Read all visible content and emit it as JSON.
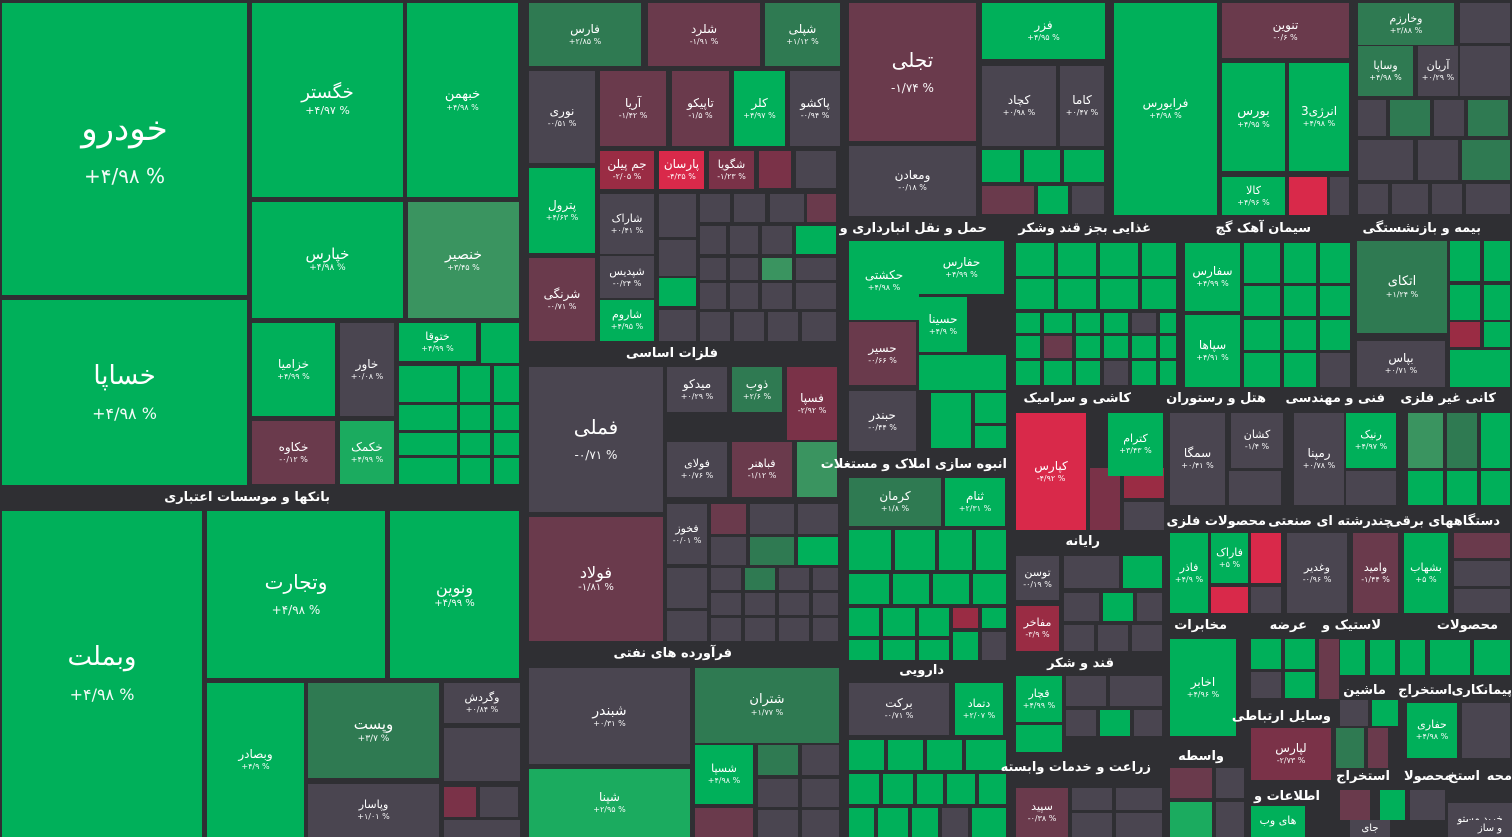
{
  "colors": {
    "bg": "#2f2f33",
    "up5": "#00b05a",
    "up4": "#1bab5f",
    "up3": "#3a9460",
    "up2": "#2f7a52",
    "neutral": "#4a4550",
    "down1": "#6a3a4c",
    "down2": "#7a3248",
    "down3": "#9a2c44",
    "down5": "#d9294a"
  },
  "sectors": [
    {
      "label": "بانکها و موسسات اعتباری"
    },
    {
      "label": "فلزات اساسی"
    },
    {
      "label": "فرآورده های نفتی"
    },
    {
      "label": "حمل و نقل انبارداری و"
    },
    {
      "label": "غذایی بجز قند وشکر"
    },
    {
      "label": "سیمان آهک گچ"
    },
    {
      "label": "بیمه و بازنشستگی"
    },
    {
      "label": "انبوه سازی املاک و مستغلات"
    },
    {
      "label": "کاشی و سرامیک"
    },
    {
      "label": "هتل و رستوران"
    },
    {
      "label": "فنی و مهندسی"
    },
    {
      "label": "کانی غیر فلزی"
    },
    {
      "label": "رایانه"
    },
    {
      "label": "محصولات فلزی"
    },
    {
      "label": "چندرشته ای صنعتی"
    },
    {
      "label": "دستگاههای برقی"
    },
    {
      "label": "دارویی"
    },
    {
      "label": "قند و شکر"
    },
    {
      "label": "مخابرات"
    },
    {
      "label": "عرضه"
    },
    {
      "label": "لاستیک و"
    },
    {
      "label": "محصولات"
    },
    {
      "label": "ماشین"
    },
    {
      "label": "استخراج"
    },
    {
      "label": "پیمانکاری"
    },
    {
      "label": "وسایل ارتباطی"
    },
    {
      "label": "زراعت و خدمات وابسته"
    },
    {
      "label": "واسطه"
    },
    {
      "label": "اطلاعات و"
    },
    {
      "label": "استخراج"
    },
    {
      "label": "محصولا"
    },
    {
      "label": "استخ"
    },
    {
      "label": "محه"
    }
  ],
  "tiles": [
    {
      "name": "خودرو",
      "pct": "+۴/۹۸ %"
    },
    {
      "name": "خساپا",
      "pct": "+۴/۹۸ %"
    },
    {
      "name": "خگستر",
      "pct": "+۴/۹۷ %"
    },
    {
      "name": "خبهمن",
      "pct": "+۴/۹۸ %"
    },
    {
      "name": "خپارس",
      "pct": "+۴/۹۸ %"
    },
    {
      "name": "خنصیر",
      "pct": "+۳/۴۵ %"
    },
    {
      "name": "خزامیا",
      "pct": "+۴/۹۹ %"
    },
    {
      "name": "خاور",
      "pct": "+۰/۰۸ %"
    },
    {
      "name": "ختوقا",
      "pct": "+۴/۹۹ %"
    },
    {
      "name": "خکاوه",
      "pct": "-۰/۱۲ %"
    },
    {
      "name": "خکمک",
      "pct": "+۴/۹۹ %"
    },
    {
      "name": "وبملت",
      "pct": "+۴/۹۸ %"
    },
    {
      "name": "وتجارت",
      "pct": "+۴/۹۸ %"
    },
    {
      "name": "ونوین",
      "pct": "+۴/۹۹ %"
    },
    {
      "name": "وبصادر",
      "pct": "+۴/۹ %"
    },
    {
      "name": "وپست",
      "pct": "+۳/۷ %"
    },
    {
      "name": "وگردش",
      "pct": "+۰/۸۴ %"
    },
    {
      "name": "وپاسار",
      "pct": "+۱/۰۱ %"
    },
    {
      "name": "فارس",
      "pct": "+۲/۸۵ %"
    },
    {
      "name": "شلرد",
      "pct": "-۱/۹۱ %"
    },
    {
      "name": "شپلی",
      "pct": "+۱/۱۲ %"
    },
    {
      "name": "نوری",
      "pct": "-۰/۵۱ %"
    },
    {
      "name": "آریا",
      "pct": "-۱/۴۲ %"
    },
    {
      "name": "تاپیکو",
      "pct": "-۱/۵ %"
    },
    {
      "name": "کلر",
      "pct": "+۴/۹۷ %"
    },
    {
      "name": "پاکشو",
      "pct": "-۰/۹۴ %"
    },
    {
      "name": "جم پیلن",
      "pct": "-۲/۰۵ %"
    },
    {
      "name": "پارسان",
      "pct": "-۴/۳۵ %"
    },
    {
      "name": "شگویا",
      "pct": "-۱/۲۳ %"
    },
    {
      "name": "پترول",
      "pct": "+۴/۶۳ %"
    },
    {
      "name": "شاراک",
      "pct": "+۰/۴۱ %"
    },
    {
      "name": "شپدیس",
      "pct": "-۰/۲۴ %"
    },
    {
      "name": "شرنگی",
      "pct": "-۰/۷۱ %"
    },
    {
      "name": "شاروم",
      "pct": "+۴/۹۵ %"
    },
    {
      "name": "فملی",
      "pct": "-۰/۷۱ %"
    },
    {
      "name": "فولاد",
      "pct": "-۱/۸۱ %"
    },
    {
      "name": "میدکو",
      "pct": "+۰/۲۹ %"
    },
    {
      "name": "ذوب",
      "pct": "+۲/۶ %"
    },
    {
      "name": "فسپا",
      "pct": "-۲/۹۲ %"
    },
    {
      "name": "فولای",
      "pct": "+۰/۷۶ %"
    },
    {
      "name": "فباهنر",
      "pct": "-۱/۱۲ %"
    },
    {
      "name": "فخوز",
      "pct": "-۰/۰۱ %"
    },
    {
      "name": "شبندر",
      "pct": "+۰/۳۱ %"
    },
    {
      "name": "شتران",
      "pct": "+۱/۷۷ %"
    },
    {
      "name": "شسپا",
      "pct": "+۴/۹۸ %"
    },
    {
      "name": "شپنا",
      "pct": "+۲/۹۵ %"
    },
    {
      "name": "تجلی",
      "pct": "-۱/۷۴ %"
    },
    {
      "name": "ومعادن",
      "pct": "-۰/۱۸ %"
    },
    {
      "name": "فزر",
      "pct": "+۴/۹۵ %"
    },
    {
      "name": "کچاد",
      "pct": "+۰/۹۸ %"
    },
    {
      "name": "کاما",
      "pct": "+۰/۴۷ %"
    },
    {
      "name": "فرابورس",
      "pct": "+۴/۹۸ %"
    },
    {
      "name": "تنوین",
      "pct": "-۰/۶ %"
    },
    {
      "name": "بورس",
      "pct": "+۴/۹۵ %"
    },
    {
      "name": "انرژی3",
      "pct": "+۴/۹۸ %"
    },
    {
      "name": "کالا",
      "pct": "+۴/۹۶ %"
    },
    {
      "name": "وخارزم",
      "pct": "+۳/۸۸ %"
    },
    {
      "name": "وساپا",
      "pct": "+۴/۹۸ %"
    },
    {
      "name": "آریان",
      "pct": "+۰/۲۹ %"
    },
    {
      "name": "حکشتی",
      "pct": "+۴/۹۸ %"
    },
    {
      "name": "حفارس",
      "pct": "+۴/۹۹ %"
    },
    {
      "name": "حسینا",
      "pct": "+۴/۹ %"
    },
    {
      "name": "حسیر",
      "pct": "-۰/۶۶ %"
    },
    {
      "name": "حبندر",
      "pct": "-۰/۴۴ %"
    },
    {
      "name": "کرمان",
      "pct": "+۱/۸ %"
    },
    {
      "name": "ثنام",
      "pct": "+۲/۳۱ %"
    },
    {
      "name": "سفارس",
      "pct": "+۴/۹۹ %"
    },
    {
      "name": "سپاها",
      "pct": "+۴/۹۱ %"
    },
    {
      "name": "اتکای",
      "pct": "+۱/۲۴ %"
    },
    {
      "name": "بپاس",
      "pct": "+۰/۷۱ %"
    },
    {
      "name": "کترام",
      "pct": "+۳/۴۳ %"
    },
    {
      "name": "کپارس",
      "pct": "-۴/۹۲ %"
    },
    {
      "name": "سمگا",
      "pct": "+۰/۴۱ %"
    },
    {
      "name": "کشان",
      "pct": "-۱/۴ %"
    },
    {
      "name": "رمپنا",
      "pct": "+۰/۷۸ %"
    },
    {
      "name": "رنیک",
      "pct": "+۴/۹۷ %"
    },
    {
      "name": "توسن",
      "pct": "-۰/۱۹ %"
    },
    {
      "name": "مفاخر",
      "pct": "-۳/۹ %"
    },
    {
      "name": "فاذر",
      "pct": "+۴/۹ %"
    },
    {
      "name": "فاراک",
      "pct": "+۵ %"
    },
    {
      "name": "وغدیر",
      "pct": "-۰/۹۶ %"
    },
    {
      "name": "وامید",
      "pct": "-۱/۴۴ %"
    },
    {
      "name": "بشهاب",
      "pct": "+۵ %"
    },
    {
      "name": "برکت",
      "pct": "-۰/۷۱ %"
    },
    {
      "name": "دتماد",
      "pct": "+۲/۰۷ %"
    },
    {
      "name": "قچار",
      "pct": "+۴/۹۹ %"
    },
    {
      "name": "اخابر",
      "pct": "+۴/۹۶ %"
    },
    {
      "name": "لپارس",
      "pct": "-۲/۷۳ %"
    },
    {
      "name": "حفاری",
      "pct": "+۴/۹۸ %"
    },
    {
      "name": "سپید",
      "pct": "-۰/۳۸ %"
    },
    {
      "name": "های وب",
      "pct": ""
    },
    {
      "name": "خرید مستو",
      "pct": ""
    },
    {
      "name": "و ساز",
      "pct": ""
    },
    {
      "name": "جای",
      "pct": ""
    }
  ]
}
